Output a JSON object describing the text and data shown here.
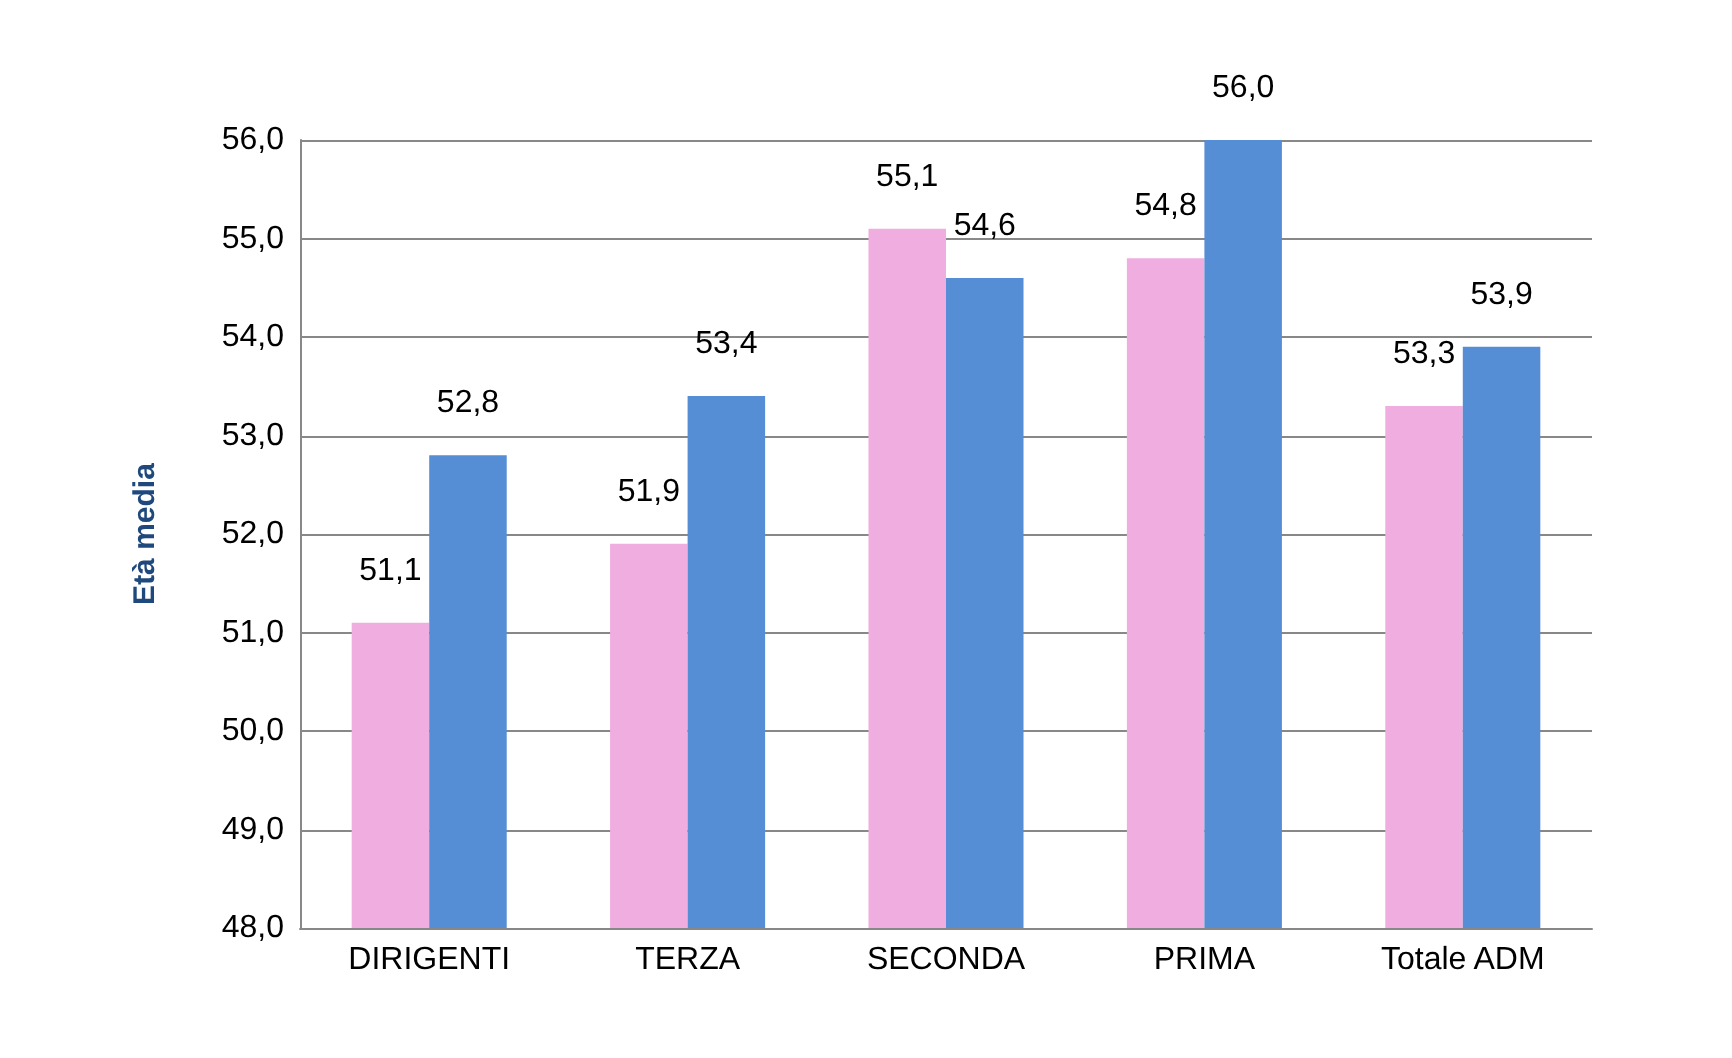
{
  "chart_data": {
    "type": "bar",
    "ylabel": "Età media",
    "categories": [
      "DIRIGENTI",
      "TERZA",
      "SECONDA",
      "PRIMA",
      "Totale ADM"
    ],
    "series": [
      {
        "color": "#f0aee0",
        "values": [
          51.1,
          51.9,
          55.1,
          54.8,
          53.3
        ],
        "value_labels": [
          "51,1",
          "51,9",
          "55,1",
          "54,8",
          "53,3"
        ]
      },
      {
        "color": "#558ed5",
        "values": [
          52.8,
          53.4,
          54.6,
          56.0,
          53.9
        ],
        "value_labels": [
          "52,8",
          "53,4",
          "54,6",
          "56,0",
          "53,9"
        ]
      }
    ],
    "ylim": [
      48,
      56
    ],
    "yticks": [
      {
        "value": 48,
        "label": "48,0"
      },
      {
        "value": 49,
        "label": "49,0"
      },
      {
        "value": 50,
        "label": "50,0"
      },
      {
        "value": 51,
        "label": "51,0"
      },
      {
        "value": 52,
        "label": "52,0"
      },
      {
        "value": 53,
        "label": "53,0"
      },
      {
        "value": 54,
        "label": "54,0"
      },
      {
        "value": 55,
        "label": "55,0"
      },
      {
        "value": 56,
        "label": "56,0"
      }
    ],
    "grid": "y"
  }
}
